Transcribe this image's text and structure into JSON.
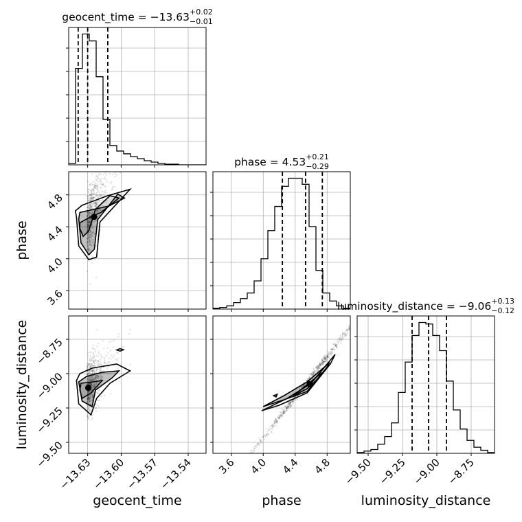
{
  "chart_data": {
    "type": "corner",
    "parameters": [
      "geocent_time",
      "phase",
      "luminosity_distance"
    ],
    "titles": [
      {
        "base": "geocent_time = −13.63",
        "plus": "+0.02",
        "minus": "−0.01"
      },
      {
        "base": "phase = 4.53",
        "plus": "+0.21",
        "minus": "−0.29"
      },
      {
        "base": "luminosity_distance = −9.06",
        "plus": "+0.13",
        "minus": "−0.12"
      }
    ],
    "ranges": [
      [
        -13.647,
        -13.524
      ],
      [
        3.37,
        5.09
      ],
      [
        -9.58,
        -8.58
      ]
    ],
    "ticks": [
      {
        "values": [
          -13.63,
          -13.6,
          -13.57,
          -13.54
        ],
        "labels": [
          "−13.63",
          "−13.60",
          "−13.57",
          "−13.54"
        ]
      },
      {
        "values": [
          3.6,
          4.0,
          4.4,
          4.8
        ],
        "labels": [
          "3.6",
          "4.0",
          "4.4",
          "4.8"
        ]
      },
      {
        "values": [
          -9.5,
          -9.25,
          -9.0,
          -8.75
        ],
        "labels": [
          "−9.50",
          "−9.25",
          "−9.00",
          "−8.75"
        ]
      }
    ],
    "quantiles": [
      [
        -13.6385,
        -13.63,
        -13.612
      ],
      [
        4.24,
        4.53,
        4.74
      ],
      [
        -9.18,
        -9.06,
        -8.93
      ]
    ],
    "histograms": [
      {
        "bin_start": -13.647,
        "bin_width": 0.00615,
        "counts": [
          2,
          140,
          190,
          180,
          128,
          66,
          28,
          20,
          16,
          12,
          9,
          6,
          4,
          2,
          1,
          1,
          0,
          0,
          0,
          0
        ]
      },
      {
        "bin_start": 3.37,
        "bin_width": 0.086,
        "counts": [
          2,
          4,
          8,
          16,
          26,
          40,
          70,
          125,
          195,
          255,
          305,
          325,
          325,
          310,
          205,
          96,
          40,
          20,
          8,
          2
        ]
      },
      {
        "bin_start": -9.58,
        "bin_width": 0.05,
        "counts": [
          1,
          3,
          5,
          12,
          22,
          40,
          80,
          120,
          155,
          172,
          170,
          155,
          135,
          95,
          57,
          32,
          17,
          8,
          4,
          1
        ]
      }
    ],
    "scatter": [
      {
        "cx": -13.6305,
        "cy": 4.42,
        "sx": 0.004,
        "sy": 0.21,
        "slope": 28
      },
      {
        "cx": -13.6305,
        "cy": -9.11,
        "sx": 0.004,
        "sy": 0.1,
        "slope": 10
      },
      {
        "cx": 4.55,
        "cy": -9.06,
        "sx": 0.24,
        "sy": 0.03,
        "slope": 0.72
      }
    ],
    "contours": [
      [
        [
          [
            -13.637,
            4.38
          ],
          [
            -13.634,
            4.28
          ],
          [
            -13.629,
            4.35
          ],
          [
            -13.623,
            4.62
          ],
          [
            -13.61,
            4.79
          ],
          [
            -13.602,
            4.76
          ],
          [
            -13.618,
            4.58
          ],
          [
            -13.628,
            4.52
          ],
          [
            -13.637,
            4.45
          ]
        ],
        [
          [
            -13.638,
            4.5
          ],
          [
            -13.636,
            4.2
          ],
          [
            -13.629,
            4.05
          ],
          [
            -13.624,
            4.12
          ],
          [
            -13.621,
            4.49
          ],
          [
            -13.603,
            4.81
          ],
          [
            -13.597,
            4.76
          ],
          [
            -13.611,
            4.66
          ],
          [
            -13.624,
            4.62
          ],
          [
            -13.637,
            4.58
          ]
        ],
        [
          [
            -13.64,
            4.52
          ],
          [
            -13.638,
            4.16
          ],
          [
            -13.629,
            3.99
          ],
          [
            -13.622,
            4.02
          ],
          [
            -13.619,
            4.46
          ],
          [
            -13.592,
            4.87
          ],
          [
            -13.612,
            4.79
          ],
          [
            -13.635,
            4.67
          ],
          [
            -13.641,
            4.6
          ]
        ]
      ],
      [
        [
          [
            -13.637,
            -9.12
          ],
          [
            -13.635,
            -9.18
          ],
          [
            -13.627,
            -9.14
          ],
          [
            -13.617,
            -9.05
          ],
          [
            -13.625,
            -9.06
          ],
          [
            -13.636,
            -9.07
          ]
        ],
        [
          [
            -13.638,
            -9.06
          ],
          [
            -13.635,
            -9.2
          ],
          [
            -13.626,
            -9.24
          ],
          [
            -13.623,
            -9.12
          ],
          [
            -13.608,
            -9.03
          ],
          [
            -13.602,
            -8.98
          ],
          [
            -13.617,
            -8.99
          ],
          [
            -13.631,
            -9.02
          ]
        ],
        [
          [
            -13.64,
            -9.05
          ],
          [
            -13.638,
            -9.22
          ],
          [
            -13.627,
            -9.3
          ],
          [
            -13.622,
            -9.18
          ],
          [
            -13.61,
            -9.07
          ],
          [
            -13.592,
            -8.98
          ],
          [
            -13.604,
            -8.93
          ],
          [
            -13.626,
            -8.96
          ],
          [
            -13.637,
            -9.0
          ]
        ],
        [
          [
            -13.601,
            -8.836
          ],
          [
            -13.598,
            -8.826
          ],
          [
            -13.601,
            -8.818
          ],
          [
            -13.604,
            -8.828
          ]
        ]
      ],
      [
        [
          [
            4.38,
            -9.16
          ],
          [
            4.55,
            -9.08
          ],
          [
            4.72,
            -9.0
          ],
          [
            4.7,
            -9.03
          ],
          [
            4.55,
            -9.11
          ]
        ],
        [
          [
            4.0,
            -9.24
          ],
          [
            4.26,
            -9.16
          ],
          [
            4.55,
            -9.06
          ],
          [
            4.83,
            -8.92
          ],
          [
            4.79,
            -8.96
          ],
          [
            4.55,
            -9.13
          ],
          [
            4.26,
            -9.19
          ]
        ],
        [
          [
            3.98,
            -9.27
          ],
          [
            4.3,
            -9.18
          ],
          [
            4.6,
            -9.07
          ],
          [
            4.9,
            -8.86
          ],
          [
            4.84,
            -8.93
          ],
          [
            4.55,
            -9.14
          ],
          [
            4.2,
            -9.23
          ]
        ],
        [
          [
            4.13,
            -9.16
          ],
          [
            4.175,
            -9.15
          ],
          [
            4.16,
            -9.17
          ]
        ]
      ]
    ],
    "grid": true
  }
}
